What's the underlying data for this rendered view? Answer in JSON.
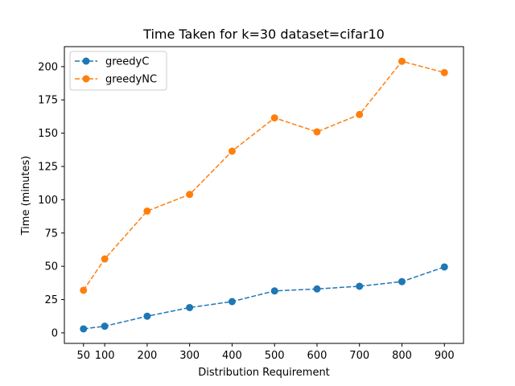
{
  "chart_data": {
    "type": "line",
    "title": "Time Taken for k=30 dataset=cifar10",
    "xlabel": "Distribution Requirement",
    "ylabel": "Time (minutes)",
    "x": [
      50,
      100,
      200,
      300,
      400,
      500,
      600,
      700,
      800,
      900
    ],
    "x_ticks": [
      "50",
      "100",
      "200",
      "300",
      "400",
      "500",
      "600",
      "700",
      "800",
      "900"
    ],
    "y_ticks": [
      "0",
      "25",
      "50",
      "75",
      "100",
      "125",
      "150",
      "175",
      "200"
    ],
    "xlim": [
      5,
      945
    ],
    "ylim": [
      -7.9,
      215
    ],
    "legend_position": "top-left",
    "grid": false,
    "series": [
      {
        "name": "greedyC",
        "color": "#1f77b4",
        "line_style": "dashed",
        "marker": "circle",
        "values": [
          3,
          5,
          12.5,
          19,
          23.5,
          31.5,
          33,
          35,
          38.5,
          49.5
        ]
      },
      {
        "name": "greedyNC",
        "color": "#ff7f0e",
        "line_style": "dashed",
        "marker": "circle",
        "values": [
          32,
          55.5,
          91.5,
          104,
          136.5,
          161.5,
          151,
          164,
          204,
          195.5
        ]
      }
    ]
  }
}
